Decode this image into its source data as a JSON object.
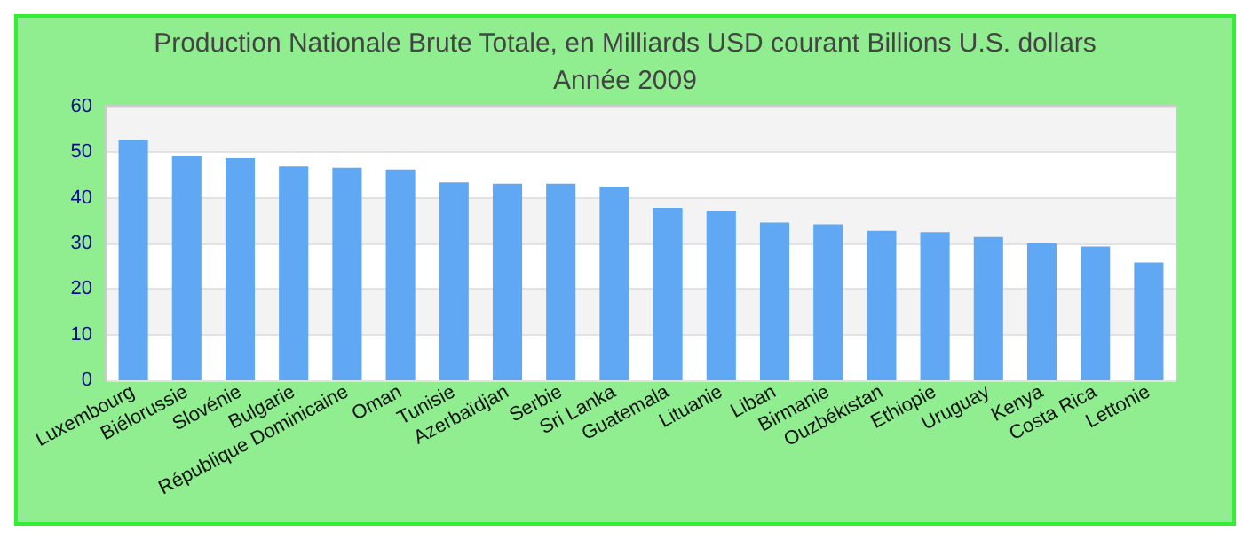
{
  "chart_data": {
    "type": "bar",
    "title": "Production Nationale Brute Totale, en Milliards USD courant Billions U.S. dollars",
    "subtitle": "Année 2009",
    "categories": [
      "Luxembourg",
      "Biélorussie",
      "Slovénie",
      "Bulgarie",
      "République Dominicaine",
      "Oman",
      "Tunisie",
      "Azerbaïdjan",
      "Serbie",
      "Sri Lanka",
      "Guatemala",
      "Lituanie",
      "Liban",
      "Birmanie",
      "Ouzbékistan",
      "Ethiopie",
      "Uruguay",
      "Kenya",
      "Costa Rica",
      "Lettonie"
    ],
    "values": [
      52.6,
      49.1,
      48.7,
      46.9,
      46.6,
      46.2,
      43.4,
      43.1,
      43.1,
      42.4,
      37.8,
      37.1,
      34.6,
      34.2,
      32.8,
      32.5,
      31.4,
      30.0,
      29.3,
      25.8
    ],
    "color": "#60a8f4",
    "ylim": [
      0,
      60
    ],
    "yticks": [
      0,
      10,
      20,
      30,
      40,
      50,
      60
    ],
    "grid": "y"
  }
}
